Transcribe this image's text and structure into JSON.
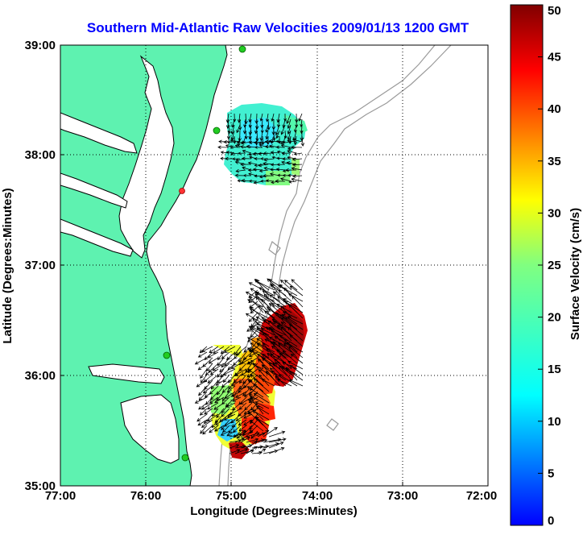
{
  "title": "Southern Mid-Atlantic Raw Velocities 2009/01/13 1200 GMT",
  "colors": {
    "title": "#0000ff",
    "land": "#5ef2b0",
    "ocean": "#ffffff",
    "coast": "#000000",
    "contour": "#9a9a9a",
    "grid": "#000000",
    "site_active": "#22cc22",
    "site_inactive": "#ff3333"
  },
  "chart_data": {
    "type": "map",
    "title": "Southern Mid-Atlantic Raw Velocities 2009/01/13 1200 GMT",
    "xlabel": "Longitude (Degrees:Minutes)",
    "ylabel": "Latitude (Degrees:Minutes)",
    "x_ticks": [
      "77:00",
      "76:00",
      "75:00",
      "74:00",
      "73:00",
      "72:00"
    ],
    "y_ticks": [
      "39:00",
      "38:00",
      "37:00",
      "36:00",
      "35:00"
    ],
    "lon_range": [
      -77,
      -72
    ],
    "lat_range": [
      35,
      39
    ],
    "grid": true,
    "colorbar": {
      "label": "Surface Velocity (cm/s)",
      "min": 0,
      "max": 50,
      "ticks": [
        "0",
        "5",
        "10",
        "15",
        "20",
        "25",
        "30",
        "35",
        "40",
        "45",
        "50"
      ],
      "colormap": "jet"
    },
    "sites": [
      {
        "lon": -74.85,
        "lat": 38.99,
        "status": "active"
      },
      {
        "lon": -75.16,
        "lat": 38.22,
        "status": "active"
      },
      {
        "lon": -75.56,
        "lat": 37.68,
        "status": "inactive"
      },
      {
        "lon": -75.74,
        "lat": 36.18,
        "status": "active"
      },
      {
        "lon": -75.54,
        "lat": 35.26,
        "status": "active"
      }
    ],
    "velocity_regions": [
      {
        "name": "north",
        "lon_range": [
          -75.15,
          -74.1
        ],
        "lat_range": [
          37.72,
          38.52
        ],
        "speed_range": [
          10,
          16
        ]
      },
      {
        "name": "south",
        "lon_range": [
          -75.35,
          -73.85
        ],
        "lat_range": [
          35.25,
          36.8
        ],
        "speed_range": [
          8,
          50
        ]
      }
    ]
  }
}
